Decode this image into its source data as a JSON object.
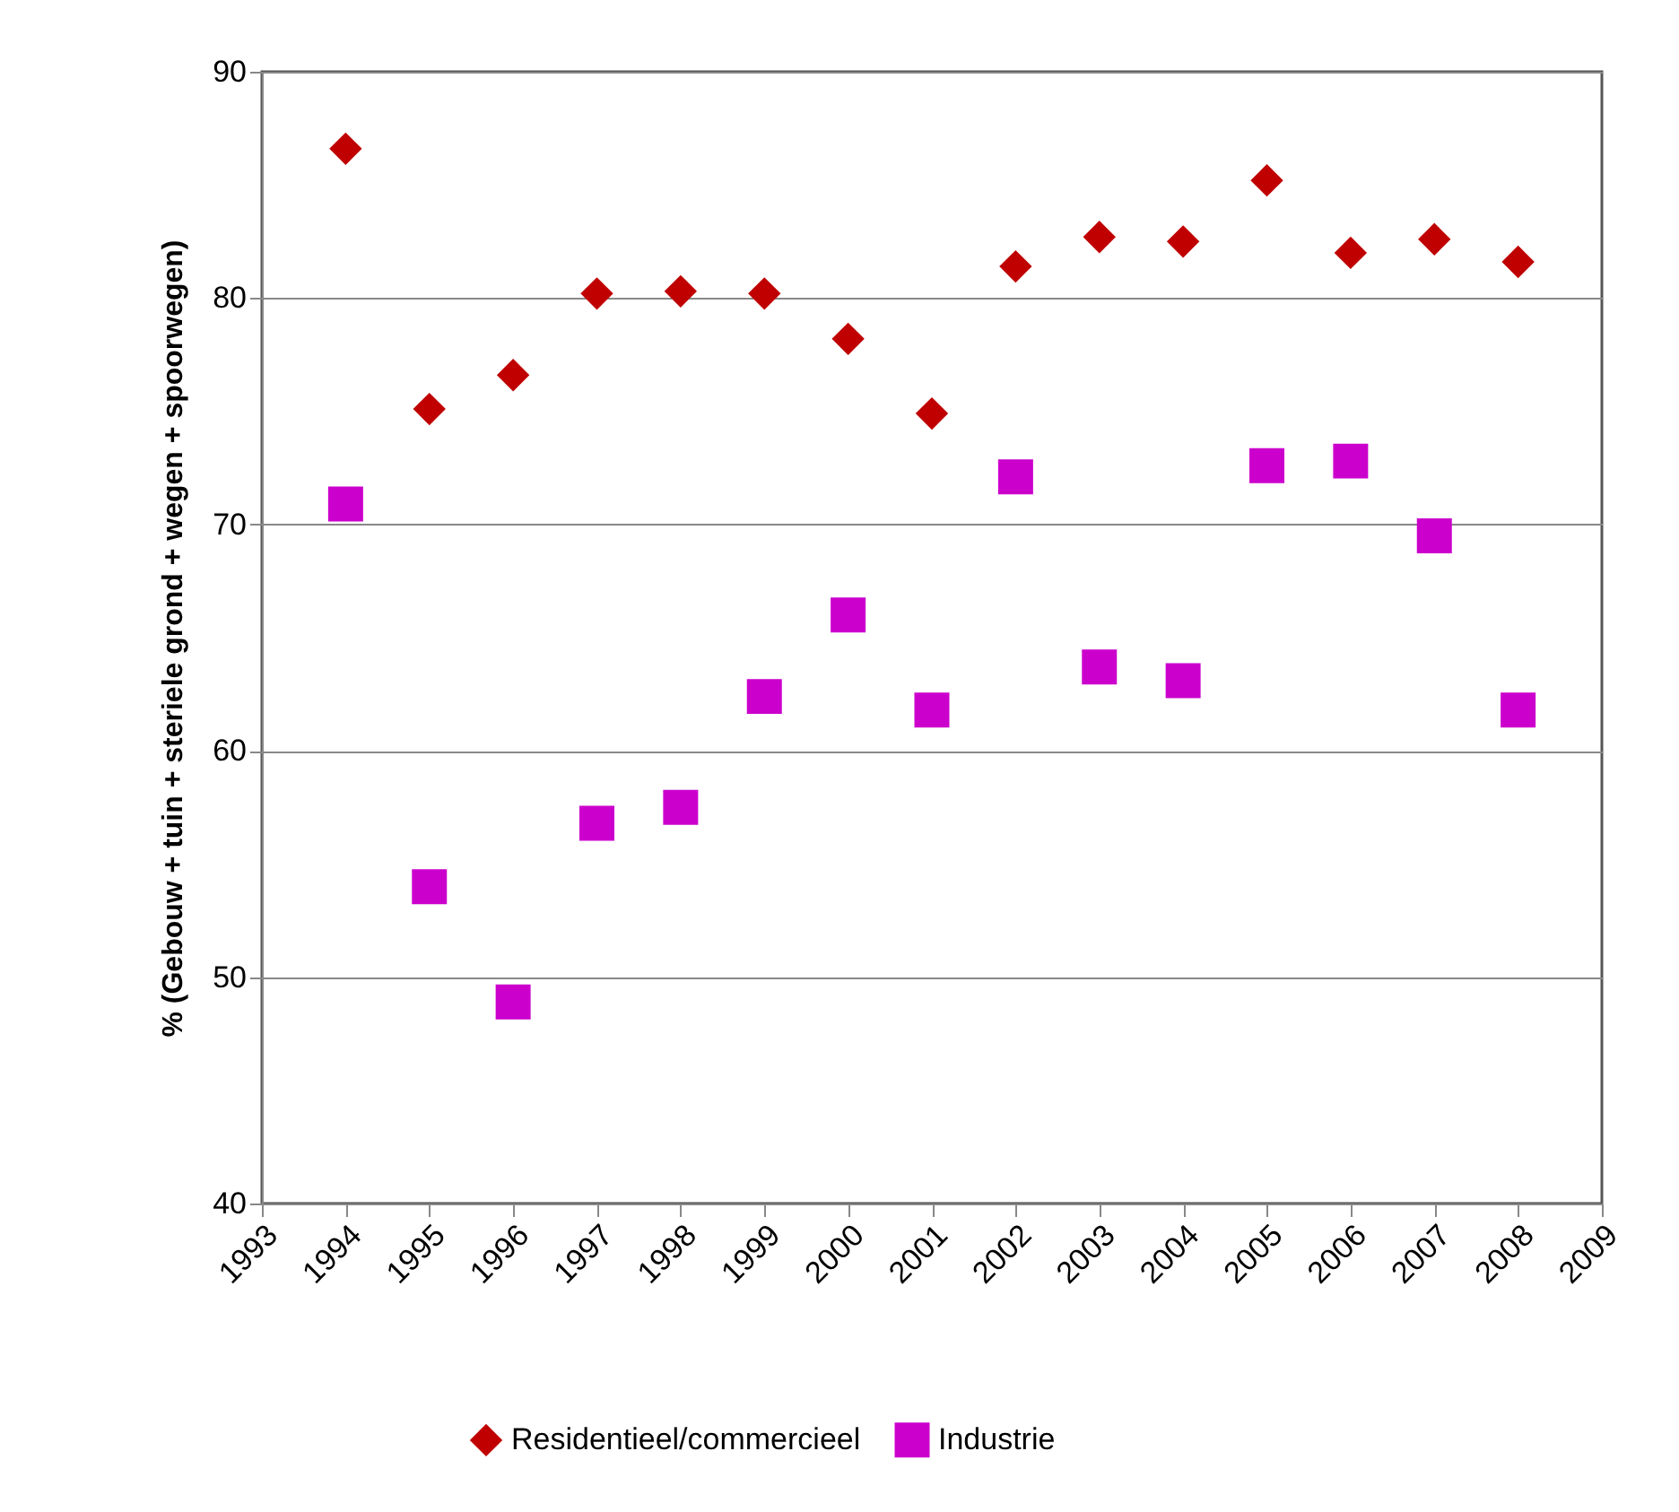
{
  "chart_data": {
    "type": "scatter",
    "ylabel": "% (Gebouw + tuin + steriele grond + wegen + spoorwegen)",
    "x": [
      1994,
      1995,
      1996,
      1997,
      1998,
      1999,
      2000,
      2001,
      2002,
      2003,
      2004,
      2005,
      2006,
      2007,
      2008
    ],
    "series": [
      {
        "name": "Residentieel/commercieel",
        "color": "#c00000",
        "marker": "diamond",
        "values": [
          86.6,
          75.1,
          76.6,
          80.2,
          80.3,
          80.2,
          78.2,
          74.9,
          81.4,
          82.7,
          82.5,
          85.2,
          82.0,
          82.6,
          81.6
        ]
      },
      {
        "name": "Industrie",
        "color": "#cc00cc",
        "marker": "square",
        "values": [
          70.9,
          54.0,
          48.9,
          56.8,
          57.5,
          62.4,
          66.0,
          61.8,
          72.1,
          63.7,
          63.1,
          72.6,
          72.8,
          69.5,
          61.8
        ]
      }
    ],
    "xlim": [
      1993,
      2009
    ],
    "xticks": [
      1993,
      1994,
      1995,
      1996,
      1997,
      1998,
      1999,
      2000,
      2001,
      2002,
      2003,
      2004,
      2005,
      2006,
      2007,
      2008,
      2009
    ],
    "ylim": [
      40,
      90
    ],
    "yticks": [
      40,
      50,
      60,
      70,
      80,
      90
    ],
    "grid": "y",
    "legend": "bottom"
  }
}
